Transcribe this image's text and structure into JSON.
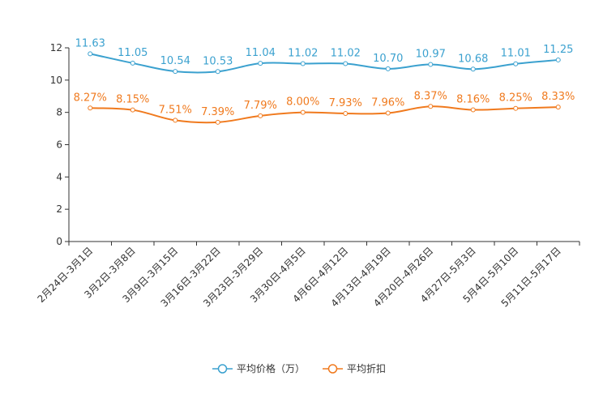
{
  "chart_data": {
    "type": "line",
    "title": "",
    "xlabel": "",
    "ylabel": "",
    "ylim": [
      0,
      12
    ],
    "yticks": [
      0,
      2,
      4,
      6,
      8,
      10,
      12
    ],
    "grid": false,
    "legend_position": "bottom-center",
    "categories": [
      "2月24日-3月1日",
      "3月2日-3月8日",
      "3月9日-3月15日",
      "3月16日-3月22日",
      "3月23日-3月29日",
      "3月30日-4月5日",
      "4月6日-4月12日",
      "4月13日-4月19日",
      "4月20日-4月26日",
      "4月27日-5月3日",
      "5月4日-5月10日",
      "5月11日-5月17日"
    ],
    "series": [
      {
        "name": "平均价格（万）",
        "color": "#3ba1cf",
        "values": [
          11.63,
          11.05,
          10.54,
          10.53,
          11.04,
          11.02,
          11.02,
          10.7,
          10.97,
          10.68,
          11.01,
          11.25
        ],
        "labels": [
          "11.63",
          "11.05",
          "10.54",
          "10.53",
          "11.04",
          "11.02",
          "11.02",
          "10.70",
          "10.97",
          "10.68",
          "11.01",
          "11.25"
        ]
      },
      {
        "name": "平均折扣",
        "color": "#f07a1e",
        "values": [
          8.27,
          8.15,
          7.51,
          7.39,
          7.79,
          8.0,
          7.93,
          7.96,
          8.37,
          8.16,
          8.25,
          8.33
        ],
        "labels": [
          "8.27%",
          "8.15%",
          "7.51%",
          "7.39%",
          "7.79%",
          "8.00%",
          "7.93%",
          "7.96%",
          "8.37%",
          "8.16%",
          "8.25%",
          "8.33%"
        ]
      }
    ]
  }
}
